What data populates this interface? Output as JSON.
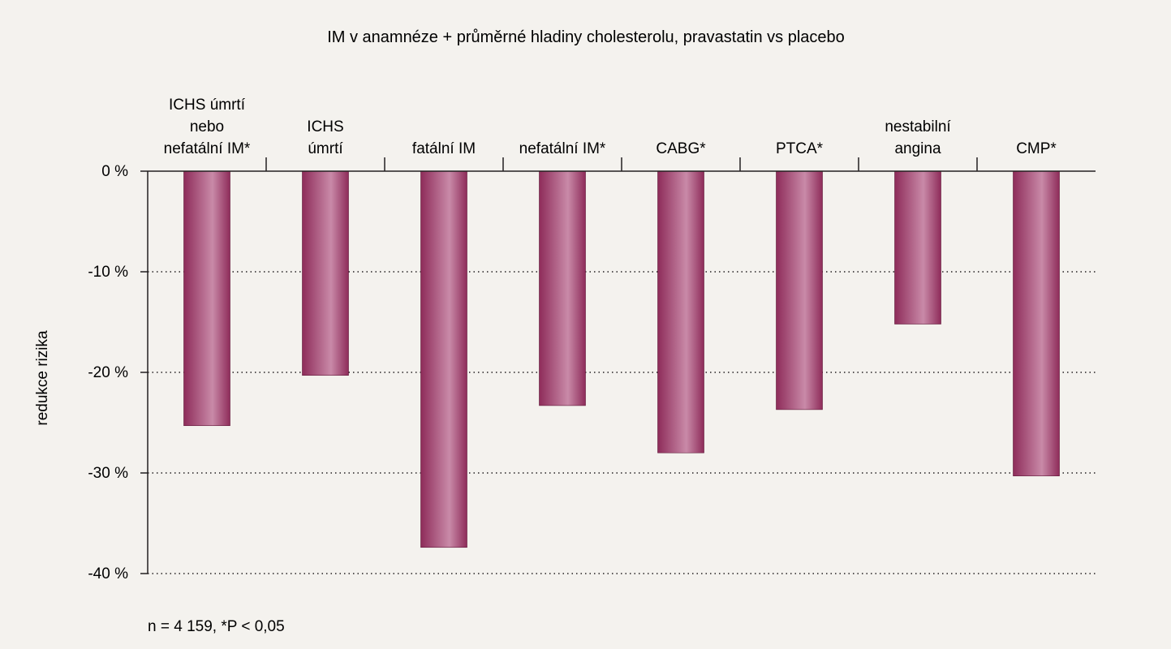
{
  "chart_data": {
    "type": "bar",
    "title": "IM v anamnéze + průměrné hladiny cholesterolu, pravastatin vs placebo",
    "ylabel": "redukce rizika",
    "xlabel": "",
    "categories": [
      [
        "ICHS úmrtí",
        "nebo",
        "nefatální IM*"
      ],
      [
        "ICHS",
        "úmrtí"
      ],
      [
        "fatální IM"
      ],
      [
        "nefatální IM*"
      ],
      [
        "CABG*"
      ],
      [
        "PTCA*"
      ],
      [
        "nestabilní",
        "angina"
      ],
      [
        "CMP*"
      ]
    ],
    "values": [
      -25.3,
      -20.3,
      -37.4,
      -23.3,
      -28.0,
      -23.7,
      -15.2,
      -30.3
    ],
    "ylim": [
      -40,
      0
    ],
    "yticks": [
      0,
      -10,
      -20,
      -30,
      -40
    ],
    "ytick_labels": [
      "0 %",
      "-10 %",
      "-20 %",
      "-30 %",
      "-40 %"
    ],
    "grid": "dotted horizontal",
    "bar_color": "#8e2c5a",
    "bar_highlight": "#c98aa8",
    "footnote": "n = 4 159, *P < 0,05"
  }
}
